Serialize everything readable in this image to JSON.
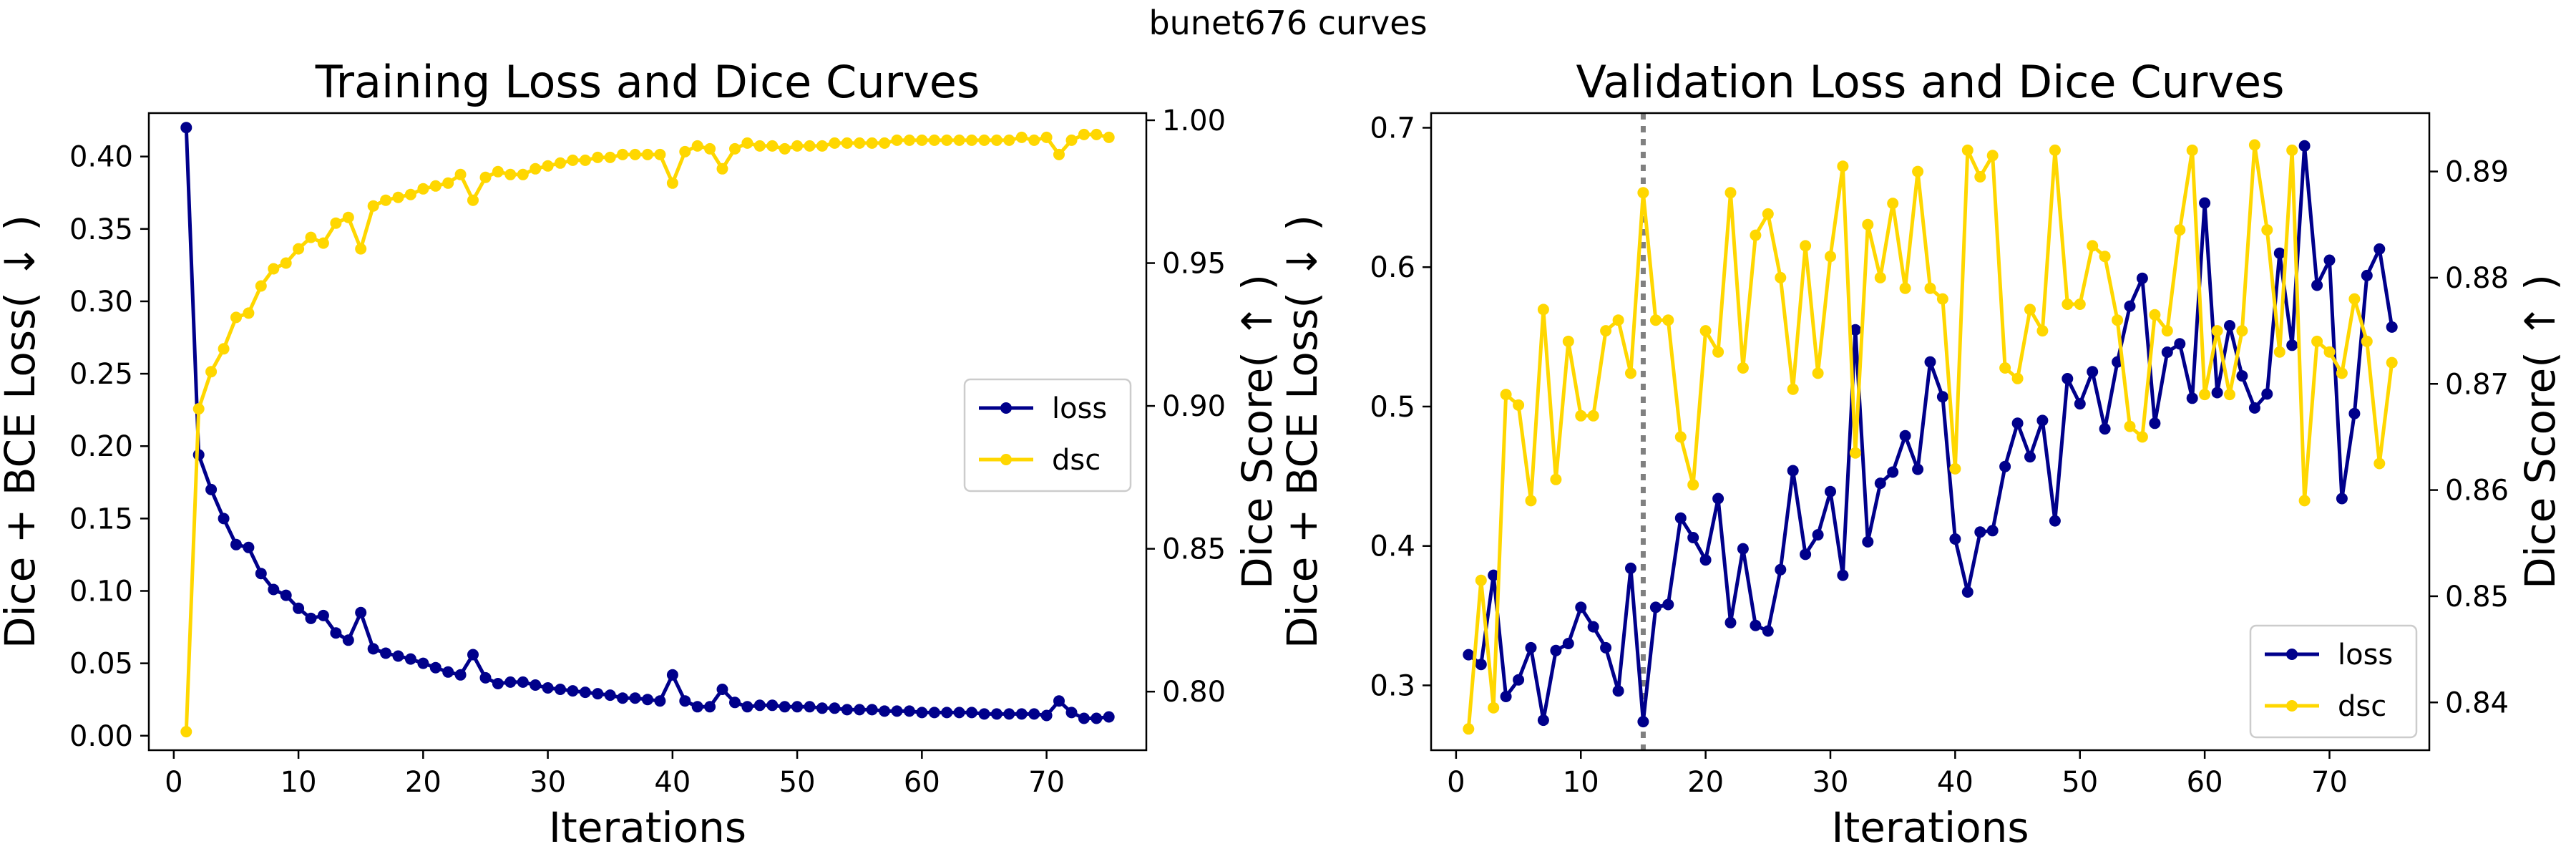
{
  "figure": {
    "suptitle": "bunet676 curves"
  },
  "chart_data": [
    {
      "type": "line",
      "title": "Training Loss and Dice Curves",
      "xlabel": "Iterations",
      "ylabel": "Dice + BCE Loss( ↓ )",
      "y2label": "Dice Score( ↑ )",
      "xlim": [
        -2,
        78
      ],
      "ylim": [
        -0.01,
        0.43
      ],
      "y2lim": [
        0.7795,
        1.0025
      ],
      "xticks": [
        0,
        10,
        20,
        30,
        40,
        50,
        60,
        70
      ],
      "yticks": [
        0.0,
        0.05,
        0.1,
        0.15,
        0.2,
        0.25,
        0.3,
        0.35,
        0.4
      ],
      "y2ticks": [
        0.8,
        0.85,
        0.9,
        0.95,
        1.0
      ],
      "legend_position": "center-right",
      "x": [
        1,
        2,
        3,
        4,
        5,
        6,
        7,
        8,
        9,
        10,
        11,
        12,
        13,
        14,
        15,
        16,
        17,
        18,
        19,
        20,
        21,
        22,
        23,
        24,
        25,
        26,
        27,
        28,
        29,
        30,
        31,
        32,
        33,
        34,
        35,
        36,
        37,
        38,
        39,
        40,
        41,
        42,
        43,
        44,
        45,
        46,
        47,
        48,
        49,
        50,
        51,
        52,
        53,
        54,
        55,
        56,
        57,
        58,
        59,
        60,
        61,
        62,
        63,
        64,
        65,
        66,
        67,
        68,
        69,
        70,
        71,
        72,
        73,
        74,
        75
      ],
      "series": [
        {
          "name": "loss",
          "axis": "left",
          "color": "#00008b",
          "values": [
            0.42,
            0.194,
            0.17,
            0.15,
            0.132,
            0.13,
            0.112,
            0.101,
            0.097,
            0.088,
            0.081,
            0.083,
            0.071,
            0.066,
            0.085,
            0.06,
            0.057,
            0.055,
            0.053,
            0.05,
            0.047,
            0.044,
            0.042,
            0.056,
            0.04,
            0.036,
            0.037,
            0.037,
            0.035,
            0.033,
            0.032,
            0.031,
            0.03,
            0.029,
            0.028,
            0.026,
            0.026,
            0.025,
            0.024,
            0.042,
            0.024,
            0.02,
            0.02,
            0.032,
            0.023,
            0.02,
            0.021,
            0.021,
            0.02,
            0.02,
            0.02,
            0.019,
            0.019,
            0.018,
            0.018,
            0.018,
            0.017,
            0.017,
            0.017,
            0.016,
            0.016,
            0.016,
            0.016,
            0.016,
            0.015,
            0.015,
            0.015,
            0.015,
            0.015,
            0.014,
            0.024,
            0.016,
            0.012,
            0.012,
            0.013
          ]
        },
        {
          "name": "dsc",
          "axis": "right",
          "color": "#ffd700",
          "values": [
            0.786,
            0.899,
            0.912,
            0.92,
            0.931,
            0.9325,
            0.942,
            0.948,
            0.95,
            0.955,
            0.959,
            0.957,
            0.964,
            0.966,
            0.955,
            0.97,
            0.972,
            0.973,
            0.974,
            0.976,
            0.977,
            0.978,
            0.981,
            0.972,
            0.98,
            0.982,
            0.981,
            0.981,
            0.983,
            0.984,
            0.985,
            0.986,
            0.986,
            0.987,
            0.987,
            0.988,
            0.988,
            0.988,
            0.988,
            0.978,
            0.989,
            0.991,
            0.99,
            0.983,
            0.99,
            0.992,
            0.991,
            0.991,
            0.99,
            0.991,
            0.991,
            0.991,
            0.992,
            0.992,
            0.992,
            0.992,
            0.992,
            0.993,
            0.993,
            0.993,
            0.993,
            0.993,
            0.993,
            0.993,
            0.993,
            0.993,
            0.993,
            0.994,
            0.993,
            0.994,
            0.988,
            0.993,
            0.995,
            0.995,
            0.994
          ]
        }
      ]
    },
    {
      "type": "line",
      "title": "Validation Loss and Dice Curves",
      "xlabel": "Iterations",
      "ylabel": "Dice + BCE Loss( ↓ )",
      "y2label": "Dice Score( ↑ )",
      "xlim": [
        -2,
        78
      ],
      "ylim": [
        0.2535,
        0.7105
      ],
      "y2lim": [
        0.8355,
        0.8955
      ],
      "xticks": [
        0,
        10,
        20,
        30,
        40,
        50,
        60,
        70
      ],
      "yticks": [
        0.3,
        0.4,
        0.5,
        0.6,
        0.7
      ],
      "y2ticks": [
        0.84,
        0.85,
        0.86,
        0.87,
        0.88,
        0.89
      ],
      "vline_x": 15,
      "vline_color": "#808080",
      "legend_position": "lower-right",
      "x": [
        1,
        2,
        3,
        4,
        5,
        6,
        7,
        8,
        9,
        10,
        11,
        12,
        13,
        14,
        15,
        16,
        17,
        18,
        19,
        20,
        21,
        22,
        23,
        24,
        25,
        26,
        27,
        28,
        29,
        30,
        31,
        32,
        33,
        34,
        35,
        36,
        37,
        38,
        39,
        40,
        41,
        42,
        43,
        44,
        45,
        46,
        47,
        48,
        49,
        50,
        51,
        52,
        53,
        54,
        55,
        56,
        57,
        58,
        59,
        60,
        61,
        62,
        63,
        64,
        65,
        66,
        67,
        68,
        69,
        70,
        71,
        72,
        73,
        74,
        75
      ],
      "series": [
        {
          "name": "loss",
          "axis": "left",
          "color": "#00008b",
          "values": [
            0.322,
            0.315,
            0.379,
            0.292,
            0.304,
            0.327,
            0.275,
            0.325,
            0.33,
            0.356,
            0.342,
            0.327,
            0.296,
            0.384,
            0.274,
            0.356,
            0.358,
            0.42,
            0.406,
            0.39,
            0.434,
            0.345,
            0.398,
            0.343,
            0.339,
            0.383,
            0.454,
            0.394,
            0.408,
            0.439,
            0.379,
            0.555,
            0.403,
            0.445,
            0.453,
            0.479,
            0.455,
            0.532,
            0.507,
            0.405,
            0.367,
            0.41,
            0.411,
            0.457,
            0.488,
            0.464,
            0.49,
            0.418,
            0.52,
            0.502,
            0.525,
            0.484,
            0.532,
            0.572,
            0.592,
            0.488,
            0.539,
            0.545,
            0.506,
            0.646,
            0.51,
            0.558,
            0.522,
            0.499,
            0.509,
            0.61,
            0.544,
            0.687,
            0.587,
            0.605,
            0.434,
            0.495,
            0.594,
            0.613,
            0.557
          ]
        },
        {
          "name": "dsc",
          "axis": "right",
          "color": "#ffd700",
          "values": [
            0.8375,
            0.8515,
            0.8395,
            0.869,
            0.868,
            0.859,
            0.877,
            0.861,
            0.874,
            0.867,
            0.867,
            0.875,
            0.876,
            0.871,
            0.888,
            0.876,
            0.876,
            0.865,
            0.8605,
            0.875,
            0.873,
            0.888,
            0.8715,
            0.884,
            0.886,
            0.88,
            0.8695,
            0.883,
            0.871,
            0.882,
            0.8905,
            0.8635,
            0.885,
            0.88,
            0.887,
            0.879,
            0.89,
            0.879,
            0.878,
            0.862,
            0.892,
            0.8895,
            0.8915,
            0.8715,
            0.8705,
            0.877,
            0.875,
            0.892,
            0.8775,
            0.8775,
            0.883,
            0.882,
            0.876,
            0.866,
            0.865,
            0.8765,
            0.875,
            0.8845,
            0.892,
            0.869,
            0.875,
            0.869,
            0.875,
            0.8925,
            0.8845,
            0.873,
            0.892,
            0.859,
            0.874,
            0.873,
            0.871,
            0.878,
            0.874,
            0.8625,
            0.872
          ]
        }
      ]
    }
  ]
}
